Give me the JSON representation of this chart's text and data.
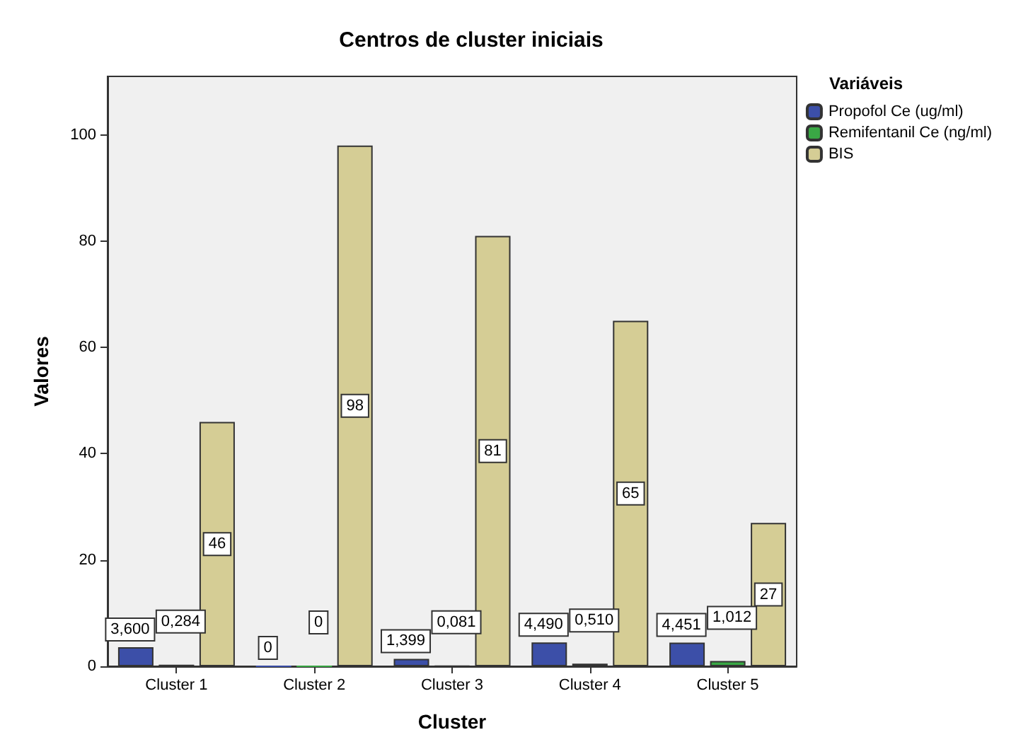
{
  "chart_data": {
    "type": "bar",
    "title": "Centros de cluster iniciais",
    "xlabel": "Cluster",
    "ylabel": "Valores",
    "legend_title": "Variáveis",
    "legend": "top right",
    "grid": false,
    "categories": [
      "Cluster 1",
      "Cluster 2",
      "Cluster 3",
      "Cluster 4",
      "Cluster 5"
    ],
    "ylim": [
      0,
      111
    ],
    "yticks": [
      0,
      20,
      40,
      60,
      80,
      100
    ],
    "series": [
      {
        "name": "Propofol Ce (ug/ml)",
        "color": "#3c4fa8",
        "values": [
          3.6,
          0,
          1.399,
          4.49,
          4.451
        ],
        "value_labels": [
          "3,600",
          "0",
          "1,399",
          "4,490",
          "4,451"
        ]
      },
      {
        "name": "Remifentanil Ce (ng/ml)",
        "color": "#3aa845",
        "values": [
          0.284,
          0,
          0.081,
          0.51,
          1.012
        ],
        "value_labels": [
          "0,284",
          "0",
          "0,081",
          "0,510",
          "1,012"
        ]
      },
      {
        "name": "BIS",
        "color": "#d5cd95",
        "values": [
          46,
          98,
          81,
          65,
          27
        ],
        "value_labels": [
          "46",
          "98",
          "81",
          "65",
          "27"
        ]
      }
    ]
  }
}
